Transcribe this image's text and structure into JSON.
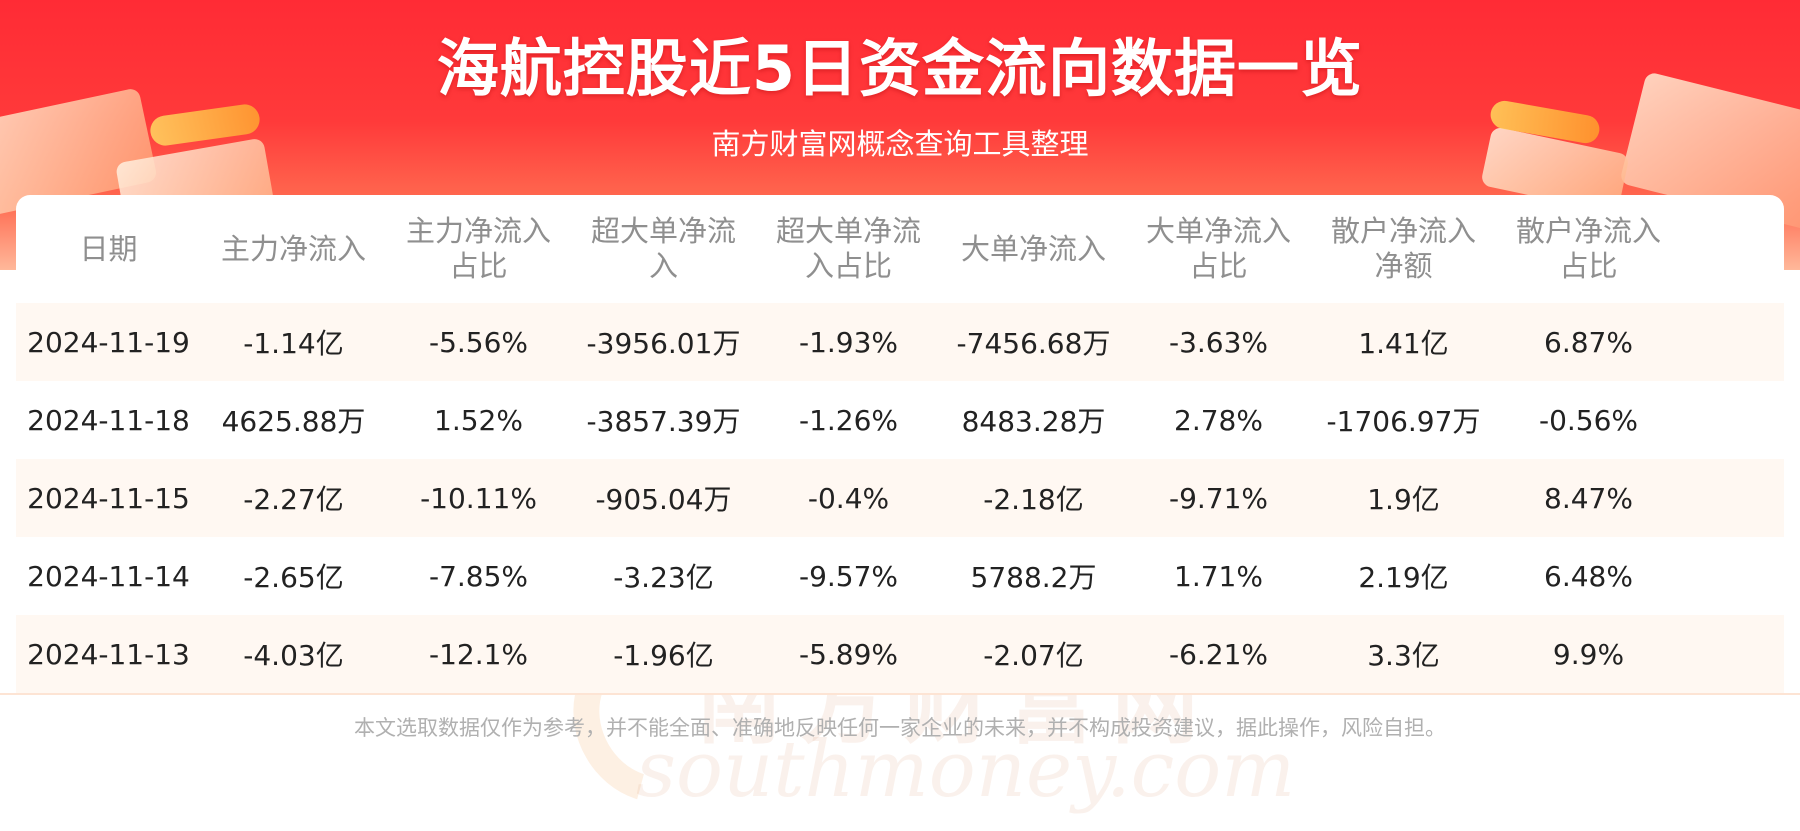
{
  "title": "海航控股近5日资金流向数据一览",
  "subtitle": "南方财富网概念查询工具整理",
  "columns": [
    "日期",
    "主力净流入",
    "主力净流入\n占比",
    "超大单净流\n入",
    "超大单净流\n入占比",
    "大单净流入",
    "大单净流入\n占比",
    "散户净流入\n净额",
    "散户净流入\n占比"
  ],
  "rows": [
    [
      "2024-11-19",
      "-1.14亿",
      "-5.56%",
      "-3956.01万",
      "-1.93%",
      "-7456.68万",
      "-3.63%",
      "1.41亿",
      "6.87%"
    ],
    [
      "2024-11-18",
      "4625.88万",
      "1.52%",
      "-3857.39万",
      "-1.26%",
      "8483.28万",
      "2.78%",
      "-1706.97万",
      "-0.56%"
    ],
    [
      "2024-11-15",
      "-2.27亿",
      "-10.11%",
      "-905.04万",
      "-0.4%",
      "-2.18亿",
      "-9.71%",
      "1.9亿",
      "8.47%"
    ],
    [
      "2024-11-14",
      "-2.65亿",
      "-7.85%",
      "-3.23亿",
      "-9.57%",
      "5788.2万",
      "1.71%",
      "2.19亿",
      "6.48%"
    ],
    [
      "2024-11-13",
      "-4.03亿",
      "-12.1%",
      "-1.96亿",
      "-5.89%",
      "-2.07亿",
      "-6.21%",
      "3.3亿",
      "9.9%"
    ]
  ],
  "watermark": {
    "cn": "南方财富网",
    "en": "southmoney.com"
  },
  "footer": "本文选取数据仅作为参考，并不能全面、准确地反映任何一家企业的未来，并不构成投资建议，据此操作，风险自担。",
  "colors": {
    "banner_red": "#ff2b35",
    "header_text": "#8f8f8f",
    "row_alt": "#fff8f2"
  }
}
